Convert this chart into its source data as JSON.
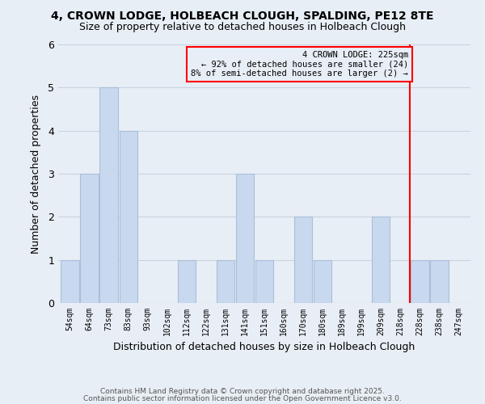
{
  "title": "4, CROWN LODGE, HOLBEACH CLOUGH, SPALDING, PE12 8TE",
  "subtitle": "Size of property relative to detached houses in Holbeach Clough",
  "xlabel": "Distribution of detached houses by size in Holbeach Clough",
  "ylabel": "Number of detached properties",
  "bins": [
    "54sqm",
    "64sqm",
    "73sqm",
    "83sqm",
    "93sqm",
    "102sqm",
    "112sqm",
    "122sqm",
    "131sqm",
    "141sqm",
    "151sqm",
    "160sqm",
    "170sqm",
    "180sqm",
    "189sqm",
    "199sqm",
    "209sqm",
    "218sqm",
    "228sqm",
    "238sqm",
    "247sqm"
  ],
  "values": [
    1,
    3,
    5,
    4,
    0,
    0,
    1,
    0,
    1,
    3,
    1,
    0,
    2,
    1,
    0,
    0,
    2,
    0,
    1,
    1,
    0
  ],
  "bar_color": "#c8d8ee",
  "bar_edge_color": "#aabfd8",
  "grid_color": "#c8d4e0",
  "background_color": "#e8eef5",
  "property_line_x": 17.5,
  "property_label": "4 CROWN LODGE: 225sqm",
  "annotation_line1": "← 92% of detached houses are smaller (24)",
  "annotation_line2": "8% of semi-detached houses are larger (2) →",
  "ylim": [
    0,
    6
  ],
  "yticks": [
    0,
    1,
    2,
    3,
    4,
    5,
    6
  ],
  "footer1": "Contains HM Land Registry data © Crown copyright and database right 2025.",
  "footer2": "Contains public sector information licensed under the Open Government Licence v3.0."
}
